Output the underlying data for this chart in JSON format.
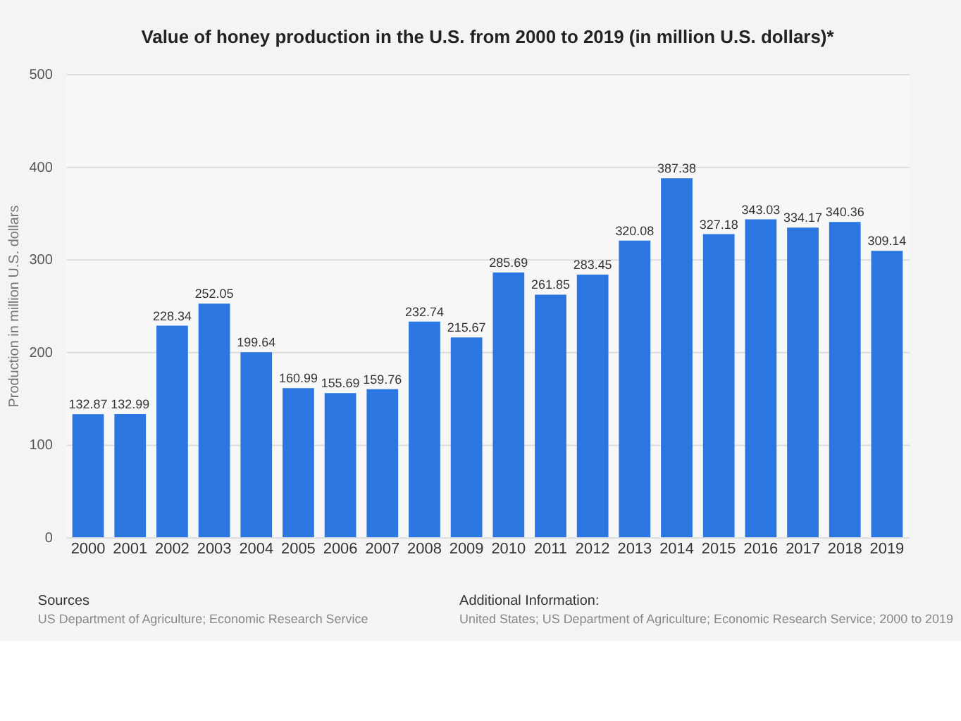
{
  "chart_data": {
    "type": "bar",
    "title": "Value of honey production in the U.S. from 2000 to 2019 (in million U.S. dollars)*",
    "ylabel": "Production in million U.S. dollars",
    "categories": [
      "2000",
      "2001",
      "2002",
      "2003",
      "2004",
      "2005",
      "2006",
      "2007",
      "2008",
      "2009",
      "2010",
      "2011",
      "2012",
      "2013",
      "2014",
      "2015",
      "2016",
      "2017",
      "2018",
      "2019"
    ],
    "values": [
      132.87,
      132.99,
      228.34,
      252.05,
      199.64,
      160.99,
      155.69,
      159.76,
      232.74,
      215.67,
      285.69,
      261.85,
      283.45,
      320.08,
      387.38,
      327.18,
      343.03,
      334.17,
      340.36,
      309.14
    ],
    "color": "#2b76e0",
    "ylim": [
      0,
      500
    ],
    "yticks": [
      0,
      100,
      200,
      300,
      400,
      500
    ],
    "grid": "y",
    "data_labels": true,
    "annotations": [
      "Sources",
      "US Department of Agriculture; Economic Research Service",
      "Additional Information:",
      "United States; US Department of Agriculture; Economic Research Service; 2000 to 2019"
    ]
  }
}
